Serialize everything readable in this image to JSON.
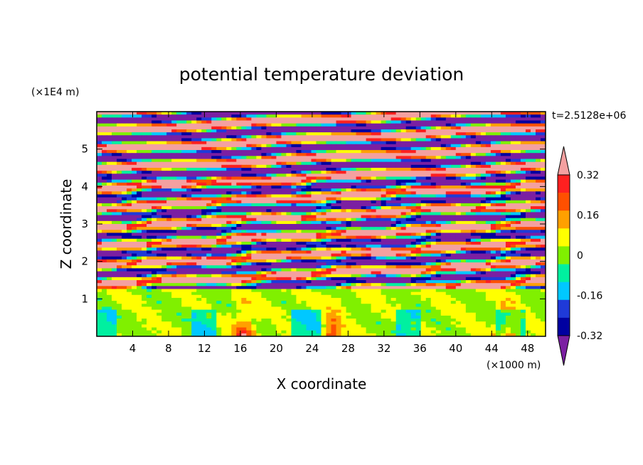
{
  "chart_data": {
    "type": "heatmap",
    "title": "potential temperature deviation",
    "time_label": "t=2.5128e+06",
    "xlabel": "X coordinate",
    "ylabel": "Z coordinate",
    "x_unit": "(×1000 m)",
    "y_unit": "(×1E4 m)",
    "xlim": [
      0,
      50
    ],
    "ylim": [
      0,
      6
    ],
    "x_ticks": [
      4,
      8,
      12,
      16,
      20,
      24,
      28,
      32,
      36,
      40,
      44,
      48
    ],
    "y_ticks": [
      1,
      2,
      3,
      4,
      5
    ],
    "colorbar": {
      "levels": [
        -0.4,
        -0.32,
        -0.24,
        -0.16,
        -0.08,
        0,
        0.08,
        0.16,
        0.24,
        0.32,
        0.4
      ],
      "labels": [
        "-0.32",
        "-0.16",
        "0",
        "0.16",
        "0.32"
      ],
      "label_values": [
        -0.32,
        -0.16,
        0,
        0.16,
        0.32
      ],
      "colors": [
        "#7b1fa2",
        "#0000a0",
        "#1f3ad8",
        "#00c8ff",
        "#00f0a0",
        "#80f000",
        "#ffff00",
        "#ffa000",
        "#ff5000",
        "#ff2020",
        "#f4a0a0"
      ],
      "extend": "both"
    },
    "layers": [
      {
        "z_range": [
          0,
          1.3
        ],
        "pattern": "mixed green/cyan/yellow with orange plumes"
      },
      {
        "z_range": [
          1.3,
          4.3
        ],
        "pattern": "interleaved bands, strong turbulence"
      },
      {
        "z_range": [
          4.3,
          6.0
        ],
        "pattern": "alternating purple/pink stable bands"
      }
    ]
  }
}
